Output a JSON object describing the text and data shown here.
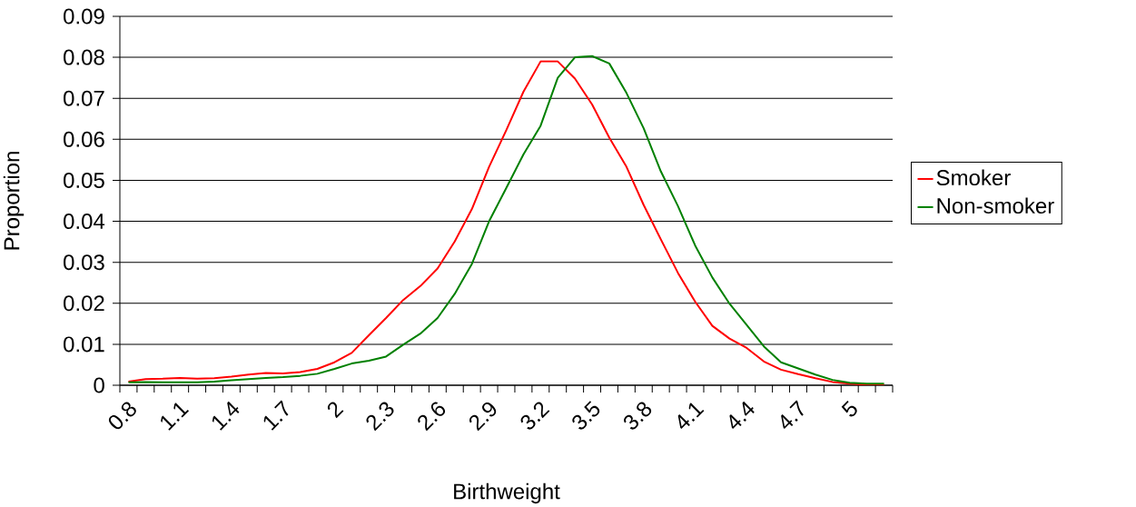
{
  "chart_data": {
    "type": "line",
    "xlabel": "Birthweight",
    "ylabel": "Proportion",
    "categories": [
      "0.8",
      null,
      null,
      "1.1",
      null,
      null,
      "1.4",
      null,
      null,
      "1.7",
      null,
      null,
      "2",
      null,
      null,
      "2.3",
      null,
      null,
      "2.6",
      null,
      null,
      "2.9",
      null,
      null,
      "3.2",
      null,
      null,
      "3.5",
      null,
      null,
      "3.8",
      null,
      null,
      "4.1",
      null,
      null,
      "4.4",
      null,
      null,
      "4.7",
      null,
      null,
      "5",
      null,
      null
    ],
    "series": [
      {
        "name": "Smoker",
        "color": "#ff0000",
        "values": [
          0.0009,
          0.0015,
          0.0016,
          0.0018,
          0.0016,
          0.0017,
          0.0021,
          0.0026,
          0.003,
          0.0029,
          0.0032,
          0.004,
          0.0056,
          0.0079,
          0.0122,
          0.0164,
          0.0208,
          0.0242,
          0.0285,
          0.0351,
          0.043,
          0.0533,
          0.0622,
          0.0716,
          0.079,
          0.079,
          0.0748,
          0.0685,
          0.0604,
          0.0533,
          0.044,
          0.0356,
          0.0274,
          0.0204,
          0.0145,
          0.0114,
          0.0091,
          0.0058,
          0.0038,
          0.0027,
          0.0017,
          0.0008,
          0.0004,
          0.0001,
          0.0001
        ]
      },
      {
        "name": "Non-smoker",
        "color": "#008000",
        "values": [
          0.0007,
          0.0008,
          0.0007,
          0.0007,
          0.0007,
          0.0009,
          0.0012,
          0.0015,
          0.0018,
          0.002,
          0.0023,
          0.0028,
          0.004,
          0.0053,
          0.006,
          0.007,
          0.0099,
          0.0126,
          0.0164,
          0.0223,
          0.0296,
          0.04,
          0.0481,
          0.0563,
          0.0633,
          0.075,
          0.08,
          0.0803,
          0.0785,
          0.0713,
          0.0627,
          0.0522,
          0.0437,
          0.0341,
          0.0263,
          0.0199,
          0.0147,
          0.0095,
          0.0056,
          0.0041,
          0.0026,
          0.0013,
          0.0006,
          0.0004,
          0.0004
        ]
      }
    ],
    "ylim": [
      0,
      0.09
    ],
    "yticks": [
      0,
      0.01,
      0.02,
      0.03,
      0.04,
      0.05,
      0.06,
      0.07,
      0.08,
      0.09
    ],
    "grid": "y",
    "legend": "right"
  }
}
